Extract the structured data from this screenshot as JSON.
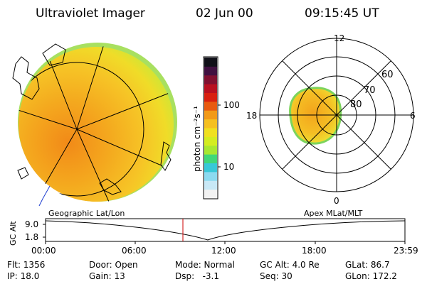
{
  "header": {
    "instrument": "Ultraviolet Imager",
    "date": "02 Jun 00",
    "time": "09:15:45 UT"
  },
  "colorbar": {
    "unit_label": "photon cm⁻²s⁻¹",
    "ticks": [
      "100",
      "10"
    ],
    "colors": [
      "#f2f2f2",
      "#c8e8f6",
      "#8cdaf0",
      "#38c8d8",
      "#40d878",
      "#a8e830",
      "#d4ec20",
      "#f0e020",
      "#f5c020",
      "#f29a18",
      "#e85a10",
      "#d82010",
      "#b81020",
      "#801030",
      "#401040",
      "#101018"
    ]
  },
  "polar": {
    "mlt_labels": {
      "top": "12",
      "left": "18",
      "right": "6",
      "bottom": "0"
    },
    "lat_labels": [
      "80",
      "70",
      "60"
    ]
  },
  "timeline": {
    "left_label": "Geographic Lat/Lon",
    "right_label": "Apex MLat/MLT",
    "axis_title": "GC Alt",
    "y_ticks": [
      "9.0",
      "1.8"
    ],
    "x_ticks": [
      "00:00",
      "06:00",
      "12:00",
      "18:00",
      "23:59"
    ],
    "marker_time": "09:15:45",
    "marker_color": "#cc0000"
  },
  "status": {
    "row1": {
      "flt": "Flt: 1356",
      "door": "Door: Open",
      "mode": "Mode: Normal",
      "gcalt": "GC Alt: 4.0 Re",
      "glat": "GLat: 86.7"
    },
    "row2": {
      "ip": "IP: 18.0",
      "gain": "Gain: 13",
      "dsp": "Dsp:   -3.1",
      "seq": "Seq: 30",
      "glon": "GLon: 172.2"
    }
  }
}
